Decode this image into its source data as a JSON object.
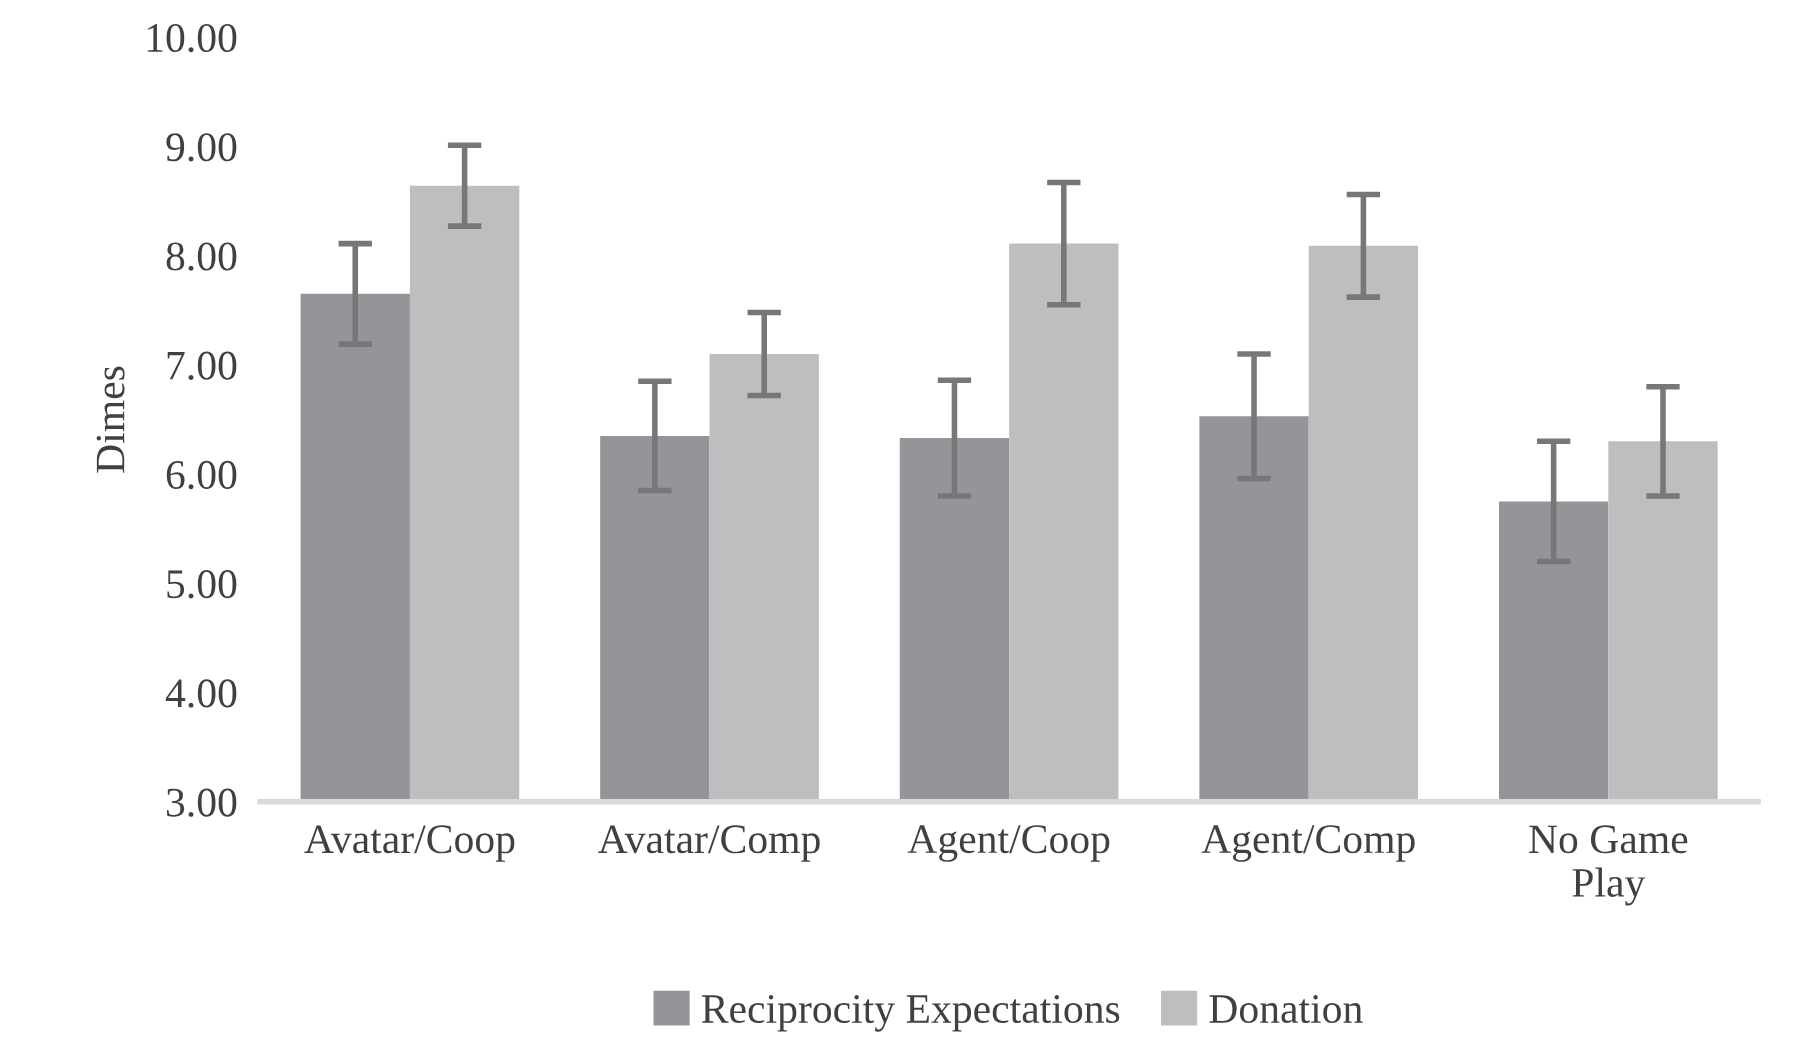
{
  "chart_data": {
    "type": "bar",
    "ylabel": "Dimes",
    "categories": [
      "Avatar/Coop",
      "Avatar/Comp",
      "Agent/Coop",
      "Agent/Comp",
      "No Game\nPlay"
    ],
    "series": [
      {
        "name": "Reciprocity Expectations",
        "color": "#939598",
        "values": [
          7.65,
          6.35,
          6.33,
          6.53,
          5.75
        ],
        "errors": [
          0.46,
          0.5,
          0.53,
          0.57,
          0.55
        ]
      },
      {
        "name": "Donation",
        "color": "#bcbec0",
        "values": [
          8.64,
          7.1,
          8.11,
          8.09,
          6.3
        ],
        "errors": [
          0.37,
          0.38,
          0.56,
          0.47,
          0.5
        ]
      }
    ],
    "ylim": [
      3,
      10
    ],
    "yticks": [
      {
        "value": 3,
        "label": "3.00"
      },
      {
        "value": 4,
        "label": "4.00"
      },
      {
        "value": 5,
        "label": "5.00"
      },
      {
        "value": 6,
        "label": "6.00"
      },
      {
        "value": 7,
        "label": "7.00"
      },
      {
        "value": 8,
        "label": "8.00"
      },
      {
        "value": 9,
        "label": "9.00"
      },
      {
        "value": 10,
        "label": "10.00"
      }
    ],
    "grid": false,
    "legend": "bottom"
  }
}
